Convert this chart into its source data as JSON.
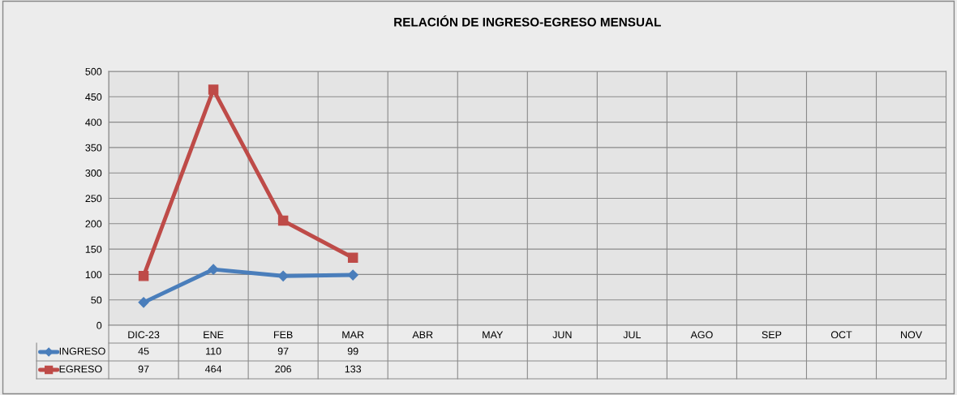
{
  "chart_data": {
    "type": "line",
    "title": "RELACIÓN DE INGRESO-EGRESO MENSUAL",
    "categories": [
      "DIC-23",
      "ENE",
      "FEB",
      "MAR",
      "ABR",
      "MAY",
      "JUN",
      "JUL",
      "AGO",
      "SEP",
      "OCT",
      "NOV"
    ],
    "series": [
      {
        "name": "INGRESO",
        "color": "#4a7ebb",
        "marker": "diamond",
        "values": [
          45,
          110,
          97,
          99,
          null,
          null,
          null,
          null,
          null,
          null,
          null,
          null
        ]
      },
      {
        "name": "EGRESO",
        "color": "#be4b48",
        "marker": "square",
        "values": [
          97,
          464,
          206,
          133,
          null,
          null,
          null,
          null,
          null,
          null,
          null,
          null
        ]
      }
    ],
    "ylim": [
      0,
      500
    ],
    "yticks": [
      0,
      50,
      100,
      150,
      200,
      250,
      300,
      350,
      400,
      450,
      500
    ],
    "grid": true,
    "legend": "bottom",
    "data_labels": true,
    "line_style": "solid"
  }
}
